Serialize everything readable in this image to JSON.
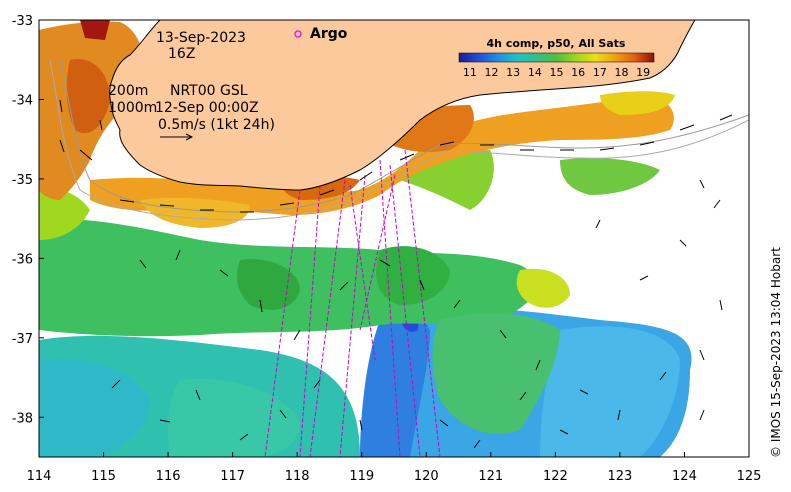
{
  "map": {
    "date_label": "13-Sep-2023",
    "hour_label": "16Z",
    "isobath_label": "200m",
    "isobath_label_2": "1000m",
    "current_source": "NRT00 GSL",
    "current_time": "12-Sep 00:00Z",
    "vector_scale_label": "0.5m/s (1kt 24h)",
    "argo_label": "Argo",
    "credit": "© IMOS 15-Sep-2023 13:04 Hobart",
    "lon_ticks": [
      "114",
      "115",
      "116",
      "117",
      "118",
      "119",
      "120",
      "121",
      "122",
      "123",
      "124",
      "125"
    ],
    "lat_ticks": [
      "-33",
      "-34",
      "-35",
      "-36",
      "-37",
      "-38"
    ],
    "lon_range": [
      114,
      125
    ],
    "lat_range": [
      -38.5,
      -33
    ],
    "colors": {
      "land": "#fcc99c",
      "argo": "#e020e0",
      "argo_track": "#cc00cc",
      "isobath": "#888888"
    }
  },
  "legend": {
    "title": "4h comp, p50, All Sats",
    "ticks": [
      "11",
      "12",
      "13",
      "14",
      "15",
      "16",
      "17",
      "18",
      "19"
    ],
    "range": [
      10.5,
      19.5
    ],
    "colormap": [
      "#1a1aa0",
      "#1f4fd8",
      "#1e90e6",
      "#1fc0c8",
      "#2fc08a",
      "#4cc040",
      "#9ad81a",
      "#e8e010",
      "#f0a010",
      "#e06010",
      "#c02010",
      "#901010"
    ]
  }
}
